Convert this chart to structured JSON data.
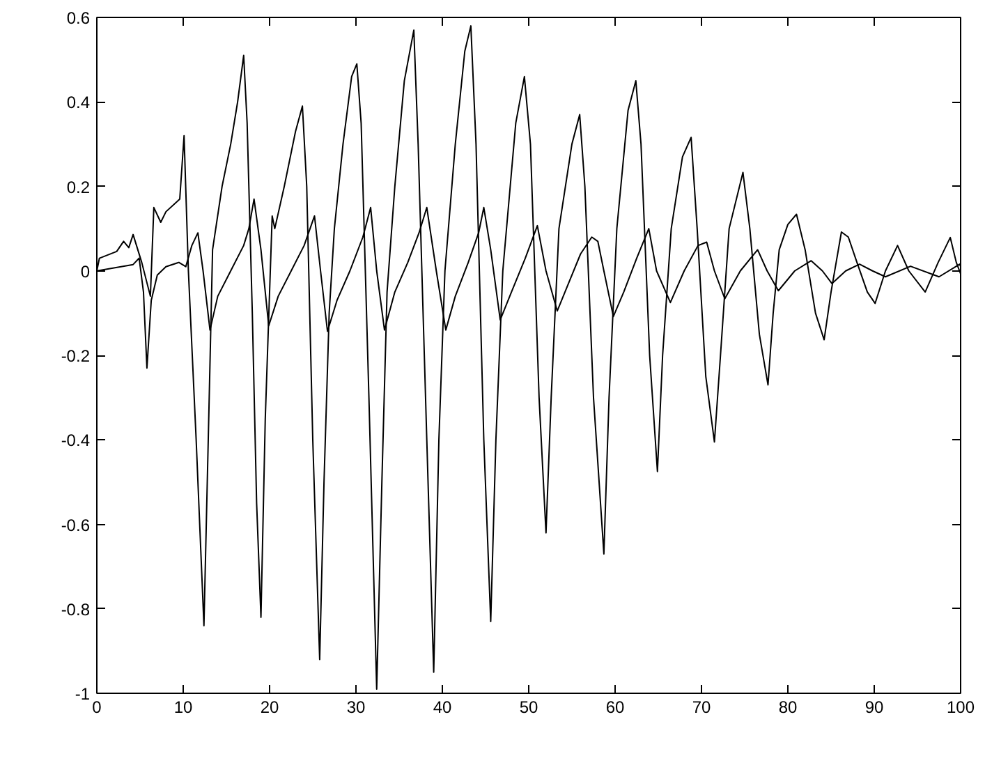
{
  "chart_data": {
    "type": "line",
    "xlim": [
      0,
      100
    ],
    "ylim": [
      -1,
      0.6
    ],
    "xticks": [
      0,
      10,
      20,
      30,
      40,
      50,
      60,
      70,
      80,
      90,
      100
    ],
    "yticks": [
      -1,
      -0.8,
      -0.6,
      -0.4,
      -0.2,
      0,
      0.2,
      0.4,
      0.6
    ],
    "grid": false,
    "marker": "none",
    "line_style": "solid",
    "series": [
      {
        "color": "#000000",
        "x": [
          0,
          0.3,
          2.3,
          3.1,
          3.7,
          4.2,
          5.2,
          6.2,
          6.6,
          7.4,
          8.0,
          9.6,
          10.1,
          10.6,
          11.5,
          12.4,
          12.9,
          13.4,
          14.5,
          15.5,
          16.3,
          17.0,
          17.4,
          18.0,
          18.5,
          19.0,
          19.5,
          20.3,
          20.6,
          21.7,
          23.0,
          23.8,
          24.3,
          25.0,
          25.8,
          26.3,
          26.9,
          27.5,
          28.5,
          29.5,
          30.1,
          30.6,
          31.5,
          32.4,
          33.0,
          33.6,
          34.5,
          35.6,
          36.7,
          37.2,
          38.2,
          39.0,
          39.6,
          40.3,
          41.5,
          42.6,
          43.3,
          43.9,
          44.8,
          45.6,
          46.2,
          47.0,
          48.5,
          49.5,
          50.2,
          51.2,
          52.0,
          52.6,
          53.5,
          55.0,
          55.9,
          56.5,
          57.5,
          58.7,
          59.3,
          60.2,
          61.5,
          62.4,
          63.0,
          64.0,
          64.9,
          65.5,
          66.5,
          67.8,
          68.8,
          69.5,
          70.5,
          71.5,
          72.2,
          73.2,
          74.8,
          75.6,
          76.7,
          77.7,
          78.3,
          79.0,
          80.0,
          81.0,
          82.0,
          83.2,
          84.2,
          85.0,
          86.2,
          87.0,
          88.0,
          89.2,
          90.1,
          91.3,
          92.7,
          94.0,
          95.9,
          97.4,
          98.8,
          99.5,
          100
        ],
        "values": [
          0,
          0.03,
          0.046,
          0.07,
          0.055,
          0.086,
          0.02,
          -0.06,
          0.15,
          0.115,
          0.14,
          0.17,
          0.32,
          0.0,
          -0.4,
          -0.84,
          -0.4,
          0.05,
          0.2,
          0.3,
          0.4,
          0.51,
          0.35,
          -0.1,
          -0.55,
          -0.82,
          -0.35,
          0.13,
          0.1,
          0.2,
          0.33,
          0.39,
          0.2,
          -0.4,
          -0.92,
          -0.5,
          -0.1,
          0.1,
          0.3,
          0.46,
          0.49,
          0.35,
          -0.3,
          -0.99,
          -0.5,
          -0.05,
          0.2,
          0.45,
          0.57,
          0.3,
          -0.4,
          -0.95,
          -0.4,
          0.0,
          0.3,
          0.52,
          0.58,
          0.3,
          -0.4,
          -0.83,
          -0.4,
          0.0,
          0.35,
          0.46,
          0.3,
          -0.3,
          -0.62,
          -0.3,
          0.1,
          0.3,
          0.37,
          0.2,
          -0.3,
          -0.67,
          -0.3,
          0.1,
          0.38,
          0.45,
          0.3,
          -0.2,
          -0.475,
          -0.2,
          0.1,
          0.27,
          0.316,
          0.1,
          -0.25,
          -0.405,
          -0.2,
          0.1,
          0.233,
          0.1,
          -0.15,
          -0.27,
          -0.1,
          0.05,
          0.11,
          0.134,
          0.05,
          -0.1,
          -0.163,
          -0.05,
          0.092,
          0.08,
          0.02,
          -0.05,
          -0.077,
          0.0,
          0.06,
          0.0,
          -0.05,
          0.02,
          0.079,
          0.02,
          -0.007
        ]
      },
      {
        "color": "#000000",
        "x": [
          0,
          4.2,
          4.9,
          5.4,
          5.8,
          6.3,
          7.0,
          8.0,
          9.5,
          10.3,
          11.0,
          11.7,
          12.3,
          13.1,
          14.0,
          15.5,
          17.0,
          17.6,
          18.2,
          19.0,
          19.9,
          21.0,
          22.5,
          24.0,
          25.2,
          25.9,
          26.7,
          27.8,
          29.3,
          30.8,
          31.7,
          32.4,
          33.3,
          34.5,
          36.0,
          37.3,
          38.2,
          39.3,
          40.4,
          41.5,
          43.0,
          44.2,
          44.8,
          45.6,
          46.7,
          48.0,
          49.6,
          51.0,
          52.0,
          53.3,
          54.6,
          56.0,
          57.3,
          58.0,
          58.7,
          59.8,
          61.0,
          62.5,
          63.9,
          64.8,
          66.4,
          68.0,
          69.6,
          70.6,
          71.5,
          72.7,
          74.5,
          76.5,
          77.6,
          78.9,
          80.8,
          82.7,
          84.0,
          85.1,
          86.7,
          88.3,
          89.8,
          91.3,
          94.2,
          97.5,
          99.9,
          100
        ],
        "values": [
          0,
          0.015,
          0.03,
          -0.05,
          -0.23,
          -0.07,
          -0.01,
          0.01,
          0.02,
          0.01,
          0.06,
          0.09,
          0.0,
          -0.14,
          -0.06,
          0.0,
          0.06,
          0.1,
          0.17,
          0.05,
          -0.13,
          -0.06,
          0.0,
          0.06,
          0.13,
          0.0,
          -0.143,
          -0.07,
          0.0,
          0.08,
          0.15,
          0.0,
          -0.14,
          -0.05,
          0.02,
          0.09,
          0.15,
          0.0,
          -0.14,
          -0.06,
          0.02,
          0.09,
          0.15,
          0.05,
          -0.116,
          -0.05,
          0.03,
          0.107,
          0.0,
          -0.095,
          -0.03,
          0.04,
          0.08,
          0.07,
          0.0,
          -0.108,
          -0.05,
          0.03,
          0.1,
          0.0,
          -0.075,
          0.0,
          0.06,
          0.068,
          0.0,
          -0.066,
          0.0,
          0.05,
          0.0,
          -0.047,
          0.0,
          0.024,
          0.0,
          -0.03,
          0.0,
          0.016,
          0.0,
          -0.014,
          0.011,
          -0.014,
          0.016,
          0.01
        ]
      }
    ]
  }
}
